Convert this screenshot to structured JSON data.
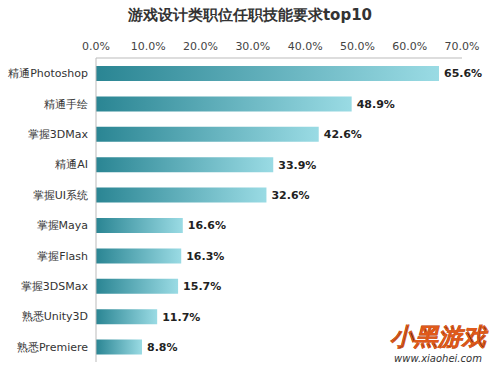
{
  "chart_data": {
    "type": "bar",
    "title": "游戏设计类职位任职技能要求top10",
    "orientation": "horizontal",
    "categories": [
      "精通Photoshop",
      "精通手绘",
      "掌握3DMax",
      "精通AI",
      "掌握UI系统",
      "掌握Maya",
      "掌握Flash",
      "掌握3DSMax",
      "熟悉Unity3D",
      "熟悉Premiere"
    ],
    "values": [
      65.6,
      48.9,
      42.6,
      33.9,
      32.6,
      16.6,
      16.3,
      15.7,
      11.7,
      8.8
    ],
    "value_labels": [
      "65.6%",
      "48.9%",
      "42.6%",
      "33.9%",
      "32.6%",
      "16.6%",
      "16.3%",
      "15.7%",
      "11.7%",
      "8.8%"
    ],
    "data_labels": true,
    "color": "#9adbe4",
    "xlim": [
      0,
      70
    ],
    "xticks": [
      {
        "value": 0,
        "label": "0.0%"
      },
      {
        "value": 10,
        "label": "10.0%"
      },
      {
        "value": 20,
        "label": "20.0%"
      },
      {
        "value": 30,
        "label": "30.0%"
      },
      {
        "value": 40,
        "label": "40.0%"
      },
      {
        "value": 50,
        "label": "50.0%"
      },
      {
        "value": 60,
        "label": "60.0%"
      },
      {
        "value": 70,
        "label": "70.0%"
      }
    ],
    "grid": false,
    "annotations": [
      "小黑游戏",
      "www.xiaohei.com"
    ]
  }
}
